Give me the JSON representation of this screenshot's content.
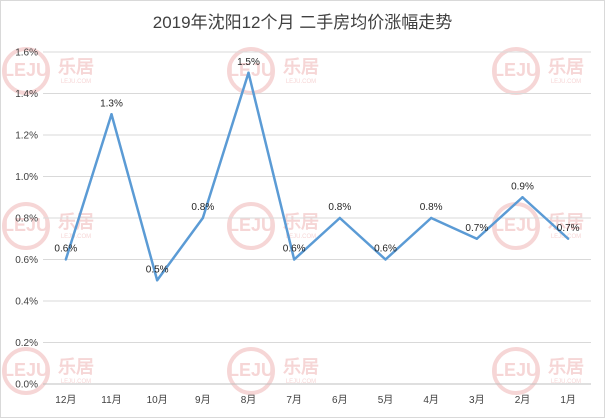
{
  "chart_data": {
    "type": "line",
    "title": "2019年沈阳12个月 二手房均价涨幅走势",
    "categories": [
      "12月",
      "11月",
      "10月",
      "9月",
      "8月",
      "7月",
      "6月",
      "5月",
      "4月",
      "3月",
      "2月",
      "1月"
    ],
    "series": [
      {
        "values": [
          0.6,
          1.3,
          0.5,
          0.8,
          1.5,
          0.6,
          0.8,
          0.6,
          0.8,
          0.7,
          0.9,
          0.7
        ],
        "labels": [
          "0.6%",
          "1.3%",
          "0.5%",
          "0.8%",
          "1.5%",
          "0.6%",
          "0.8%",
          "0.6%",
          "0.8%",
          "0.7%",
          "0.9%",
          "0.7%"
        ],
        "color": "#5b9bd5"
      }
    ],
    "y_ticks": [
      "0.0%",
      "0.2%",
      "0.4%",
      "0.6%",
      "0.8%",
      "1.0%",
      "1.2%",
      "1.4%",
      "1.6%"
    ],
    "ylim": [
      0,
      1.6
    ],
    "grid": true,
    "legend": "none"
  },
  "watermark": {
    "logo": "LEJU",
    "brand": "乐居",
    "site": "LEJU.COM"
  },
  "colors": {
    "gridline": "#d9d9d9",
    "axis": "#bfbfbf",
    "watermark": "#f3c9c9"
  }
}
